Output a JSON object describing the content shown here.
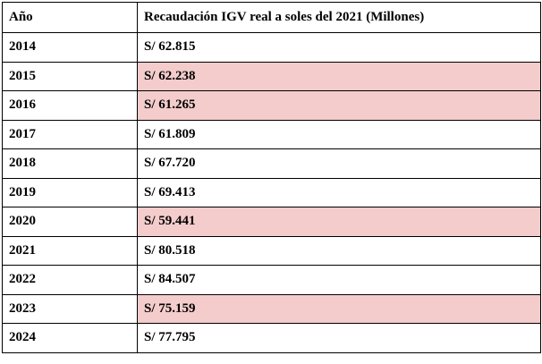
{
  "table": {
    "headers": {
      "year": "Año",
      "value": "Recaudación IGV real a soles del 2021 (Millones)"
    },
    "highlight_color": "#f4cccc",
    "rows": [
      {
        "year": "2014",
        "value": "S/ 62.815",
        "highlighted": false
      },
      {
        "year": "2015",
        "value": "S/ 62.238",
        "highlighted": true
      },
      {
        "year": "2016",
        "value": "S/ 61.265",
        "highlighted": true
      },
      {
        "year": "2017",
        "value": "S/ 61.809",
        "highlighted": false
      },
      {
        "year": "2018",
        "value": "S/ 67.720",
        "highlighted": false
      },
      {
        "year": "2019",
        "value": "S/ 69.413",
        "highlighted": false
      },
      {
        "year": "2020",
        "value": "S/ 59.441",
        "highlighted": true
      },
      {
        "year": "2021",
        "value": "S/ 80.518",
        "highlighted": false
      },
      {
        "year": "2022",
        "value": "S/ 84.507",
        "highlighted": false
      },
      {
        "year": "2023",
        "value": "S/ 75.159",
        "highlighted": true
      },
      {
        "year": "2024",
        "value": "S/ 77.795",
        "highlighted": false
      }
    ]
  }
}
